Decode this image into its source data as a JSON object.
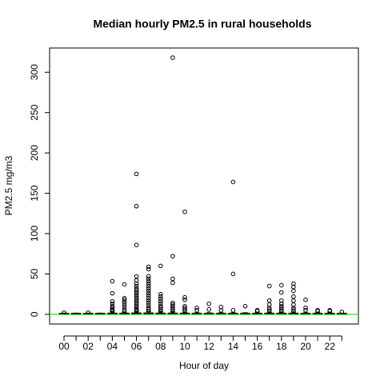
{
  "chart_data": {
    "type": "box",
    "title": "Median hourly PM2.5 in rural households",
    "x_label": "Hour of day",
    "y_label": "PM2.5 mg/m3",
    "categories": [
      "00",
      null,
      "02",
      null,
      "04",
      null,
      "06",
      null,
      "08",
      null,
      "10",
      null,
      "12",
      null,
      "14",
      null,
      "16",
      null,
      "18",
      null,
      "20",
      null,
      "22",
      null
    ],
    "boxes": [
      {
        "min": 0,
        "q1": 0.3,
        "median": 0.6,
        "q3": 1,
        "max": 1.5,
        "outliers": [
          2
        ]
      },
      {
        "min": 0,
        "q1": 0.3,
        "median": 0.6,
        "q3": 1,
        "max": 1.5,
        "outliers": []
      },
      {
        "min": 0,
        "q1": 0.3,
        "median": 0.6,
        "q3": 1,
        "max": 1.5,
        "outliers": [
          2
        ]
      },
      {
        "min": 0,
        "q1": 0.3,
        "median": 0.6,
        "q3": 1,
        "max": 1.5,
        "outliers": []
      },
      {
        "min": 0,
        "q1": 0.3,
        "median": 0.7,
        "q3": 1.2,
        "max": 2.5,
        "outliers": [
          41,
          26,
          16,
          13,
          10,
          8,
          6,
          5,
          4
        ]
      },
      {
        "min": 0,
        "q1": 0.3,
        "median": 0.7,
        "q3": 1.2,
        "max": 2.5,
        "outliers": [
          37,
          20,
          18,
          15,
          12,
          9,
          6,
          4
        ]
      },
      {
        "min": 0,
        "q1": 0.4,
        "median": 0.9,
        "q3": 1.6,
        "max": 3.5,
        "outliers": [
          174,
          134,
          86,
          47,
          42,
          38,
          35,
          32,
          30,
          28,
          26,
          24,
          22,
          20,
          18,
          16,
          14,
          12,
          10,
          8,
          6,
          5,
          4
        ]
      },
      {
        "min": 0,
        "q1": 0.4,
        "median": 0.9,
        "q3": 1.6,
        "max": 3.5,
        "outliers": [
          59,
          56,
          47,
          44,
          41,
          38,
          35,
          32,
          29,
          26,
          23,
          20,
          17,
          14,
          11,
          8,
          6,
          4
        ]
      },
      {
        "min": 0,
        "q1": 0.4,
        "median": 0.8,
        "q3": 1.4,
        "max": 3,
        "outliers": [
          60,
          25,
          22,
          19,
          16,
          13,
          10,
          8,
          6,
          4
        ]
      },
      {
        "min": 0,
        "q1": 0.4,
        "median": 0.8,
        "q3": 1.4,
        "max": 3,
        "outliers": [
          318,
          72,
          44,
          39,
          14,
          12,
          10,
          8,
          6,
          4
        ]
      },
      {
        "min": 0,
        "q1": 0.3,
        "median": 0.7,
        "q3": 1.2,
        "max": 2.5,
        "outliers": [
          127,
          21,
          18,
          10,
          8,
          6,
          4
        ]
      },
      {
        "min": 0,
        "q1": 0.3,
        "median": 0.6,
        "q3": 1,
        "max": 2,
        "outliers": [
          8,
          5
        ]
      },
      {
        "min": 0,
        "q1": 0.3,
        "median": 0.6,
        "q3": 1,
        "max": 2,
        "outliers": [
          13,
          6
        ]
      },
      {
        "min": 0,
        "q1": 0.3,
        "median": 0.6,
        "q3": 1,
        "max": 2,
        "outliers": [
          9,
          5
        ]
      },
      {
        "min": 0,
        "q1": 0.3,
        "median": 0.6,
        "q3": 1,
        "max": 2,
        "outliers": [
          164,
          50,
          5
        ]
      },
      {
        "min": 0,
        "q1": 0.3,
        "median": 0.6,
        "q3": 1,
        "max": 2,
        "outliers": [
          10
        ]
      },
      {
        "min": 0,
        "q1": 0.3,
        "median": 0.6,
        "q3": 1,
        "max": 2,
        "outliers": [
          5,
          4
        ]
      },
      {
        "min": 0,
        "q1": 0.3,
        "median": 0.7,
        "q3": 1.2,
        "max": 2.5,
        "outliers": [
          35,
          17,
          12,
          8,
          6,
          4
        ]
      },
      {
        "min": 0,
        "q1": 0.3,
        "median": 0.7,
        "q3": 1.2,
        "max": 2.5,
        "outliers": [
          36,
          27,
          17,
          13,
          10,
          8,
          6,
          4
        ]
      },
      {
        "min": 0,
        "q1": 0.3,
        "median": 0.7,
        "q3": 1.2,
        "max": 2.5,
        "outliers": [
          38,
          34,
          29,
          22,
          17,
          12,
          8,
          6,
          4
        ]
      },
      {
        "min": 0,
        "q1": 0.3,
        "median": 0.6,
        "q3": 1,
        "max": 2,
        "outliers": [
          18,
          8,
          5
        ]
      },
      {
        "min": 0,
        "q1": 0.3,
        "median": 0.6,
        "q3": 1,
        "max": 2,
        "outliers": [
          5,
          4
        ]
      },
      {
        "min": 0,
        "q1": 0.3,
        "median": 0.6,
        "q3": 1,
        "max": 2,
        "outliers": [
          5,
          4
        ]
      },
      {
        "min": 0,
        "q1": 0.3,
        "median": 0.6,
        "q3": 1,
        "max": 1.5,
        "outliers": [
          3
        ]
      }
    ],
    "color": "#000000",
    "ylim": [
      -12,
      330
    ],
    "yticks": [
      0,
      50,
      100,
      150,
      200,
      250,
      300
    ],
    "reference_line": {
      "value": 0,
      "color": "#00cc00"
    }
  }
}
